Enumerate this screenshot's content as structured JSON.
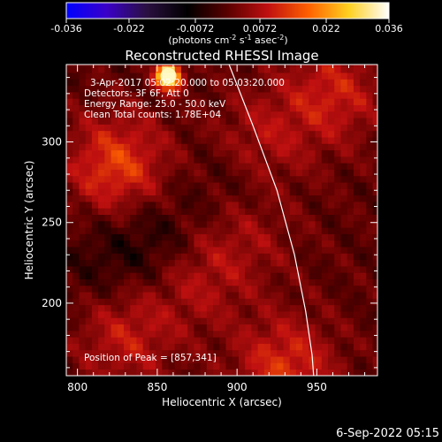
{
  "colorbar": {
    "ticks": [
      "-0.036",
      "-0.022",
      "-0.0072",
      "0.0072",
      "0.022",
      "0.036"
    ],
    "tick_values": [
      -0.036,
      -0.022,
      -0.0072,
      0.0072,
      0.022,
      0.036
    ],
    "min": -0.036,
    "max": 0.036,
    "unit_prefix": "(photons cm",
    "unit_exp1": "-2",
    "unit_mid": " s",
    "unit_exp2": "-1",
    "unit_mid2": " asec",
    "unit_exp3": "-2",
    "unit_suffix": ")",
    "colors": [
      "#0000ff",
      "#3a00c8",
      "#2a1040",
      "#000000",
      "#5a0000",
      "#c01010",
      "#ff6000",
      "#ffd020",
      "#ffffff"
    ]
  },
  "chart_data": {
    "type": "heatmap",
    "title": "Reconstructed RHESSI Image",
    "xlabel": "Heliocentric X (arcsec)",
    "ylabel": "Heliocentric Y (arcsec)",
    "xlim": [
      793,
      988
    ],
    "ylim": [
      155,
      348
    ],
    "xticks": [
      800,
      850,
      900,
      950
    ],
    "yticks": [
      200,
      250,
      300
    ],
    "annotations": [
      "3-Apr-2017 05:02:20.000 to 05:03:20.000",
      "Detectors: 3F 6F, Att 0",
      "Energy Range: 25.0 - 50.0 keV",
      "Clean    Total counts: 1.78E+04"
    ],
    "peak_label": "Position of Peak = [857,341]",
    "peak": [
      857,
      341
    ],
    "limb_curve": [
      [
        895,
        348
      ],
      [
        910,
        310
      ],
      [
        925,
        270
      ],
      [
        936,
        230
      ],
      [
        943,
        195
      ],
      [
        947,
        168
      ],
      [
        948,
        155
      ]
    ],
    "background_features": [
      {
        "x": 825,
        "y": 285,
        "value": 0.014
      },
      {
        "x": 915,
        "y": 300,
        "value": 0.008
      },
      {
        "x": 960,
        "y": 330,
        "value": 0.01
      },
      {
        "x": 830,
        "y": 180,
        "value": 0.009
      },
      {
        "x": 875,
        "y": 215,
        "value": 0.007
      },
      {
        "x": 930,
        "y": 160,
        "value": 0.012
      },
      {
        "x": 905,
        "y": 245,
        "value": 0.006
      },
      {
        "x": 850,
        "y": 240,
        "value": -0.006
      },
      {
        "x": 900,
        "y": 275,
        "value": -0.005
      },
      {
        "x": 815,
        "y": 225,
        "value": -0.004
      }
    ]
  },
  "footer_date": "6-Sep-2022 05:15"
}
